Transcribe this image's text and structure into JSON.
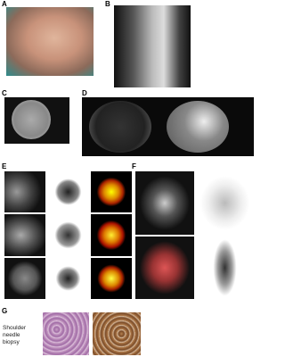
{
  "panels": [
    {
      "label": "A"
    },
    {
      "label": "B"
    },
    {
      "label": "C"
    },
    {
      "label": "D"
    },
    {
      "label": "E"
    },
    {
      "label": "F"
    },
    {
      "label": "G",
      "caption": "Shoulder needle biopsy"
    }
  ]
}
